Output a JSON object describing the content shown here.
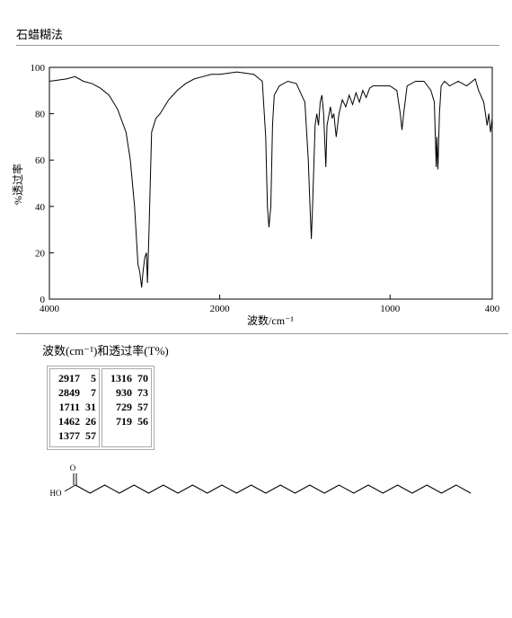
{
  "header": {
    "title": "石蜡糊法"
  },
  "chart_data": {
    "type": "line",
    "color": "#000000",
    "xlabel": "波数/cm⁻¹",
    "ylabel": "%透过率",
    "xlim": [
      4000,
      400
    ],
    "x_scale_break": 2000,
    "xticks": [
      4000,
      2000,
      1000,
      400
    ],
    "ylim": [
      0,
      100
    ],
    "yticks": [
      0,
      20,
      40,
      60,
      80,
      100
    ],
    "x": [
      4000,
      3800,
      3700,
      3600,
      3500,
      3400,
      3300,
      3200,
      3100,
      3050,
      3000,
      2960,
      2940,
      2917,
      2900,
      2880,
      2860,
      2849,
      2830,
      2800,
      2750,
      2700,
      2650,
      2600,
      2500,
      2400,
      2300,
      2200,
      2100,
      2000,
      1900,
      1800,
      1750,
      1730,
      1720,
      1711,
      1700,
      1690,
      1680,
      1650,
      1600,
      1550,
      1500,
      1480,
      1470,
      1462,
      1455,
      1440,
      1430,
      1420,
      1410,
      1400,
      1390,
      1377,
      1370,
      1350,
      1340,
      1330,
      1316,
      1300,
      1280,
      1260,
      1240,
      1220,
      1200,
      1180,
      1160,
      1140,
      1120,
      1100,
      1050,
      1000,
      960,
      940,
      930,
      920,
      900,
      850,
      800,
      780,
      760,
      740,
      729,
      725,
      719,
      710,
      700,
      680,
      650,
      600,
      550,
      500,
      480,
      450,
      430,
      420,
      410,
      400
    ],
    "values": [
      94,
      95,
      96,
      94,
      93,
      91,
      88,
      82,
      72,
      60,
      40,
      15,
      12,
      5,
      12,
      18,
      20,
      7,
      30,
      72,
      78,
      80,
      83,
      86,
      90,
      93,
      95,
      96,
      97,
      97,
      98,
      97,
      94,
      70,
      40,
      31,
      40,
      75,
      88,
      92,
      94,
      93,
      85,
      60,
      40,
      26,
      40,
      75,
      80,
      75,
      85,
      88,
      80,
      57,
      75,
      83,
      78,
      80,
      70,
      80,
      86,
      83,
      88,
      84,
      89,
      85,
      90,
      87,
      91,
      92,
      92,
      92,
      90,
      80,
      73,
      80,
      92,
      94,
      94,
      92,
      90,
      85,
      57,
      70,
      56,
      80,
      92,
      94,
      92,
      94,
      92,
      95,
      90,
      85,
      75,
      80,
      72,
      78
    ]
  },
  "table": {
    "caption": "波数(cm⁻¹)和透过率(T%)",
    "groups": [
      [
        [
          2917,
          5
        ],
        [
          2849,
          7
        ],
        [
          1711,
          31
        ],
        [
          1462,
          26
        ],
        [
          1377,
          57
        ]
      ],
      [
        [
          1316,
          70
        ],
        [
          930,
          73
        ],
        [
          729,
          57
        ],
        [
          719,
          56
        ]
      ]
    ]
  },
  "structure": {
    "labels": [
      "O",
      "HO"
    ]
  }
}
